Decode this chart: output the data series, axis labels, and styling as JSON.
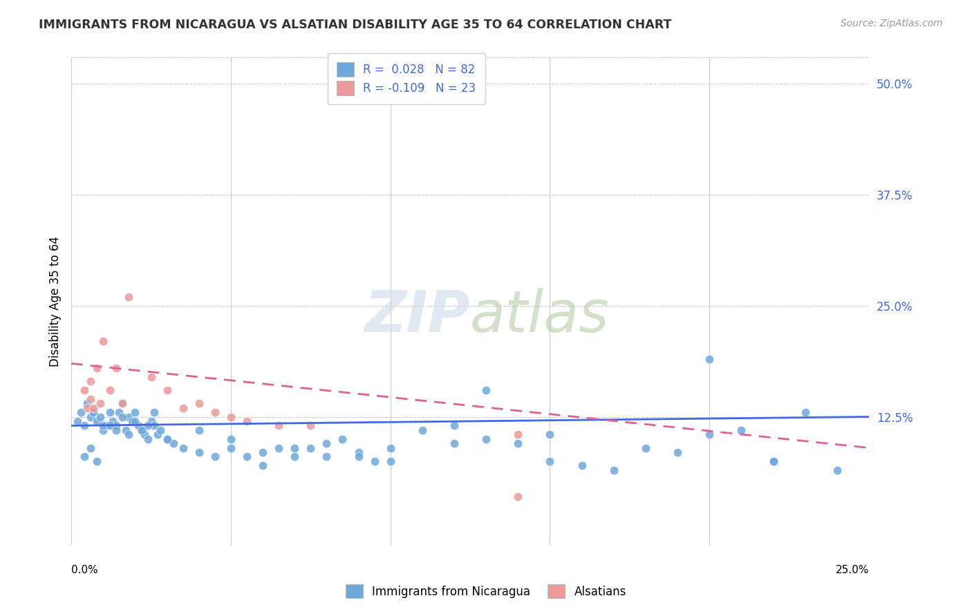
{
  "title": "IMMIGRANTS FROM NICARAGUA VS ALSATIAN DISABILITY AGE 35 TO 64 CORRELATION CHART",
  "source": "Source: ZipAtlas.com",
  "ylabel": "Disability Age 35 to 64",
  "ytick_labels": [
    "12.5%",
    "25.0%",
    "37.5%",
    "50.0%"
  ],
  "ytick_values": [
    0.125,
    0.25,
    0.375,
    0.5
  ],
  "xlim": [
    0.0,
    0.25
  ],
  "ylim": [
    -0.02,
    0.53
  ],
  "legend_label1": "Immigrants from Nicaragua",
  "legend_label2": "Alsatians",
  "blue_color": "#6fa8dc",
  "pink_color": "#ea9999",
  "blue_line_color": "#4169e1",
  "pink_line_color": "#e06090",
  "blue_scatter_x": [
    0.005,
    0.003,
    0.004,
    0.006,
    0.002,
    0.007,
    0.008,
    0.009,
    0.01,
    0.011,
    0.012,
    0.013,
    0.014,
    0.015,
    0.016,
    0.017,
    0.018,
    0.019,
    0.02,
    0.021,
    0.022,
    0.023,
    0.024,
    0.025,
    0.026,
    0.027,
    0.028,
    0.03,
    0.032,
    0.035,
    0.04,
    0.045,
    0.05,
    0.055,
    0.06,
    0.065,
    0.07,
    0.075,
    0.08,
    0.085,
    0.09,
    0.095,
    0.1,
    0.11,
    0.12,
    0.13,
    0.14,
    0.15,
    0.16,
    0.17,
    0.18,
    0.19,
    0.2,
    0.21,
    0.22,
    0.23,
    0.004,
    0.006,
    0.008,
    0.01,
    0.012,
    0.014,
    0.016,
    0.018,
    0.02,
    0.022,
    0.024,
    0.026,
    0.03,
    0.04,
    0.05,
    0.06,
    0.07,
    0.08,
    0.09,
    0.1,
    0.12,
    0.15,
    0.2,
    0.22,
    0.24,
    0.13
  ],
  "blue_scatter_y": [
    0.14,
    0.13,
    0.115,
    0.125,
    0.12,
    0.13,
    0.12,
    0.125,
    0.11,
    0.115,
    0.13,
    0.12,
    0.115,
    0.13,
    0.14,
    0.11,
    0.125,
    0.12,
    0.13,
    0.115,
    0.11,
    0.105,
    0.1,
    0.12,
    0.115,
    0.105,
    0.11,
    0.1,
    0.095,
    0.09,
    0.085,
    0.08,
    0.09,
    0.08,
    0.07,
    0.09,
    0.08,
    0.09,
    0.08,
    0.1,
    0.085,
    0.075,
    0.09,
    0.11,
    0.115,
    0.1,
    0.095,
    0.105,
    0.07,
    0.065,
    0.09,
    0.085,
    0.105,
    0.11,
    0.075,
    0.13,
    0.08,
    0.09,
    0.075,
    0.115,
    0.115,
    0.11,
    0.125,
    0.105,
    0.12,
    0.11,
    0.115,
    0.13,
    0.1,
    0.11,
    0.1,
    0.085,
    0.09,
    0.095,
    0.08,
    0.075,
    0.095,
    0.075,
    0.19,
    0.075,
    0.065,
    0.155
  ],
  "pink_scatter_x": [
    0.005,
    0.004,
    0.006,
    0.006,
    0.007,
    0.008,
    0.009,
    0.01,
    0.012,
    0.014,
    0.016,
    0.018,
    0.025,
    0.03,
    0.035,
    0.04,
    0.045,
    0.05,
    0.055,
    0.065,
    0.075,
    0.14,
    0.14
  ],
  "pink_scatter_y": [
    0.135,
    0.155,
    0.145,
    0.165,
    0.135,
    0.18,
    0.14,
    0.21,
    0.155,
    0.18,
    0.14,
    0.26,
    0.17,
    0.155,
    0.135,
    0.14,
    0.13,
    0.125,
    0.12,
    0.115,
    0.115,
    0.105,
    0.035
  ],
  "blue_trend_x": [
    0.0,
    0.25
  ],
  "blue_trend_y": [
    0.115,
    0.125
  ],
  "pink_trend_x": [
    0.0,
    0.25
  ],
  "pink_trend_y": [
    0.185,
    0.09
  ]
}
